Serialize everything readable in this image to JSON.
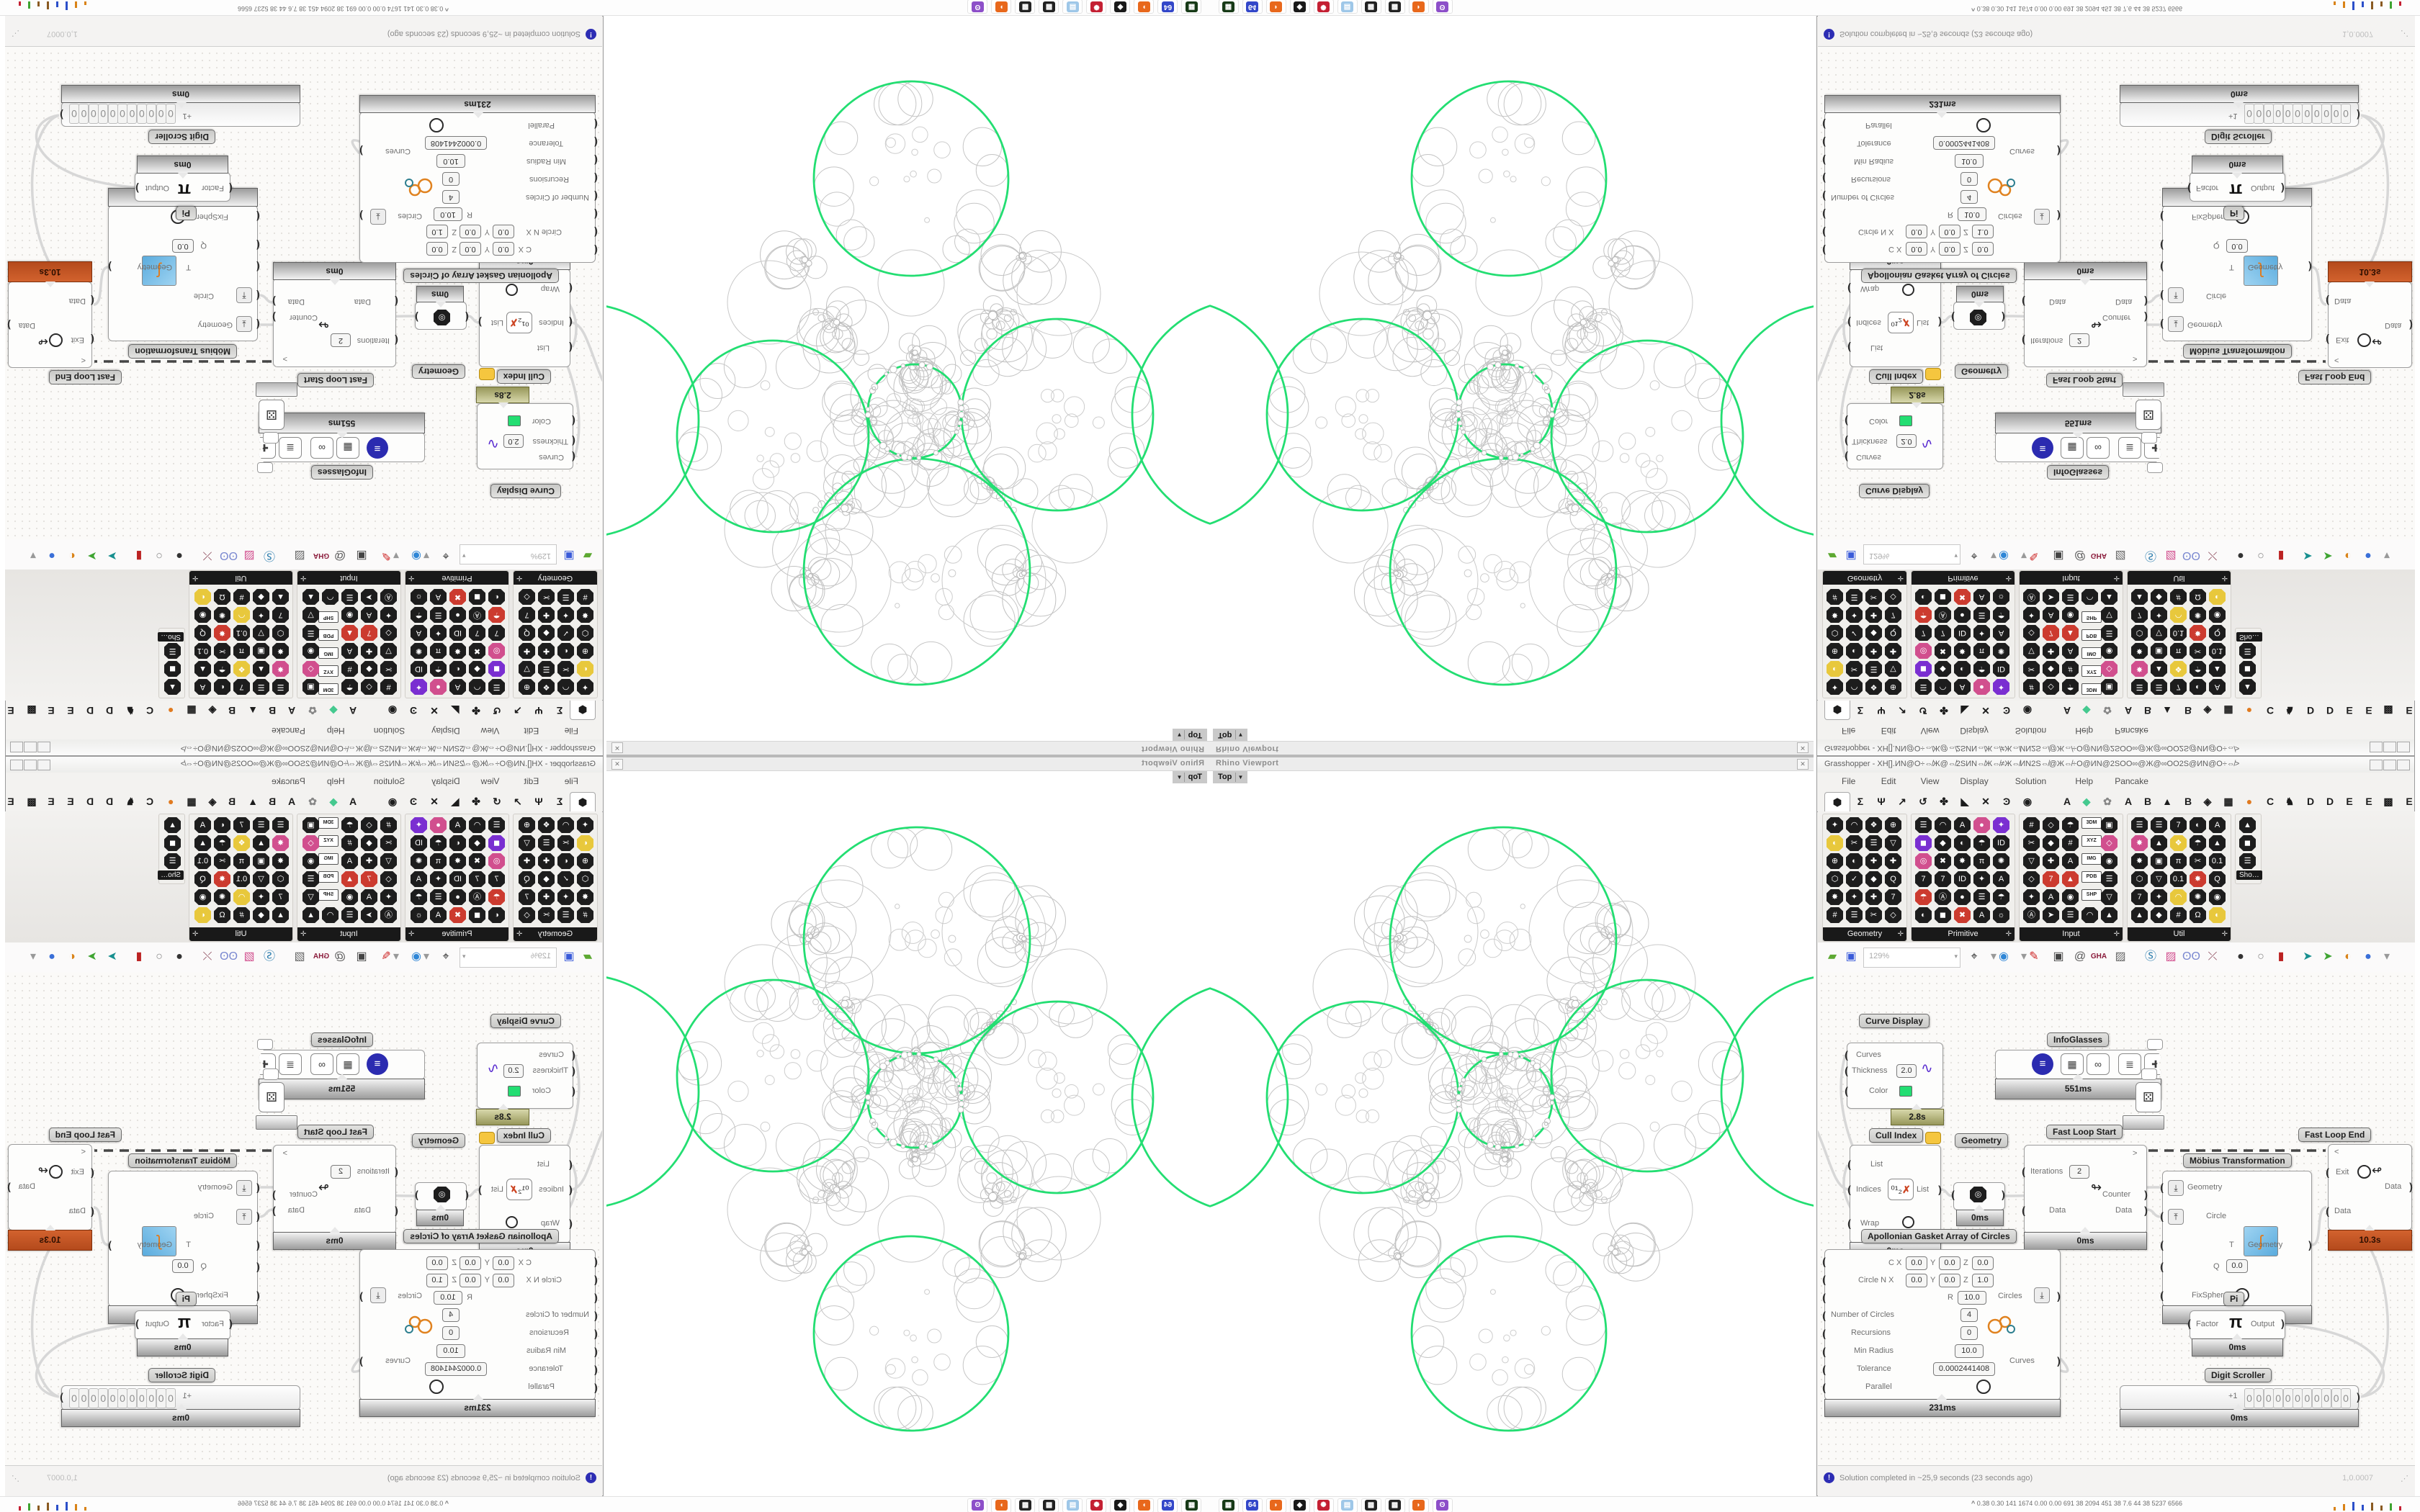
{
  "window_title": "Grasshopper - XH[].ИN@O÷⇎Ж@⇎2SИN⇎Ж⇎≠Ж⇎ИN2S⇎@Ж⇎÷O@ИN@2SОO∞@Ж@∞OО2S@ИN@O÷⇎>",
  "window_buttons": [
    "─",
    "□",
    "✕"
  ],
  "menu": [
    "File",
    "Edit",
    "View",
    "Display",
    "Solution",
    "Help",
    "Pancake"
  ],
  "viewport": {
    "panel_title": "Rhino Viewport",
    "view_tab": "Top",
    "tab_dropdown": "▼",
    "close": "✕"
  },
  "tabs": [
    "⬢",
    "Σ",
    "Ψ",
    "↗",
    "↺",
    "✤",
    "◣",
    "✕",
    "Ͽ",
    "◉",
    "A",
    "◆",
    "✿",
    "A",
    "B",
    "▲",
    "B",
    "◈",
    "▦",
    "●",
    "C",
    "♞",
    "D",
    "D",
    "E",
    "E",
    "▩",
    "E"
  ],
  "ribbon_panels": [
    {
      "name": "Geometry",
      "cols": 4,
      "rows": 6
    },
    {
      "name": "Primitive",
      "cols": 5,
      "rows": 6
    },
    {
      "name": "Input",
      "cols": 5,
      "rows": 6
    },
    {
      "name": "Util",
      "cols": 5,
      "rows": 6
    },
    {
      "name": "Sho…",
      "cols": 1,
      "rows": 3
    }
  ],
  "input_tags": [
    "3DM",
    "XYZ",
    "IMG",
    "PDB",
    "SHP"
  ],
  "toolbar": {
    "zoom_level": "129%",
    "gha_label": "GHA"
  },
  "statusbar": {
    "message": "Solution completed in ~25,9 seconds (23 seconds ago)",
    "coordinate": "1,0.0007"
  },
  "taskbar": {
    "stats": "0.38 0.30 141 1674 0.00 0.00 691 38 2094 451 38 7.6 44 38 5237 6566",
    "chevron": "^",
    "apps": [
      "terminal",
      "n64",
      "firefox",
      "inkscape",
      "raspbian",
      "notes",
      "maze",
      "maze2",
      "firefox2",
      "owl"
    ]
  },
  "components": {
    "curve_display": {
      "label": "Curve Display",
      "rows": [
        "Curves",
        "Thickness",
        "Color"
      ],
      "thickness_value": "2.0",
      "timer": "2.8s"
    },
    "infoglasses": {
      "label": "InfoGlasses",
      "timer": "551ms"
    },
    "cull_index": {
      "label": "Cull Index",
      "rows": [
        "List",
        "Indices",
        "Wrap"
      ],
      "out": "List",
      "timer": "0ms"
    },
    "geometry": {
      "label": "Geometry",
      "timer": "0ms"
    },
    "fast_loop_start": {
      "label": "Fast Loop Start",
      "corner": ">",
      "iterations_label": "Iterations",
      "iterations_value": "2",
      "data_label": "Data",
      "out_counter": "Counter",
      "out_data": "Data",
      "timer": "0ms"
    },
    "mobius": {
      "label": "Möbius Transformation",
      "rows": [
        "Geometry",
        "Circle",
        "T",
        "Q",
        "FixSphere"
      ],
      "q_value": "0.0",
      "out": "Geometry",
      "timer": "1ms"
    },
    "fast_loop_end": {
      "label": "Fast Loop End",
      "corner": "<",
      "exit_label": "Exit",
      "data_in": "Data",
      "data_out": "Data",
      "timer": "10.3s"
    },
    "pi": {
      "label": "Pi",
      "in": "Factor",
      "glyph": "π",
      "out": "Output",
      "timer": "0ms"
    },
    "digit_scroller": {
      "label": "Digit Scroller",
      "prefix": "+1",
      "digits": [
        "0",
        "0",
        "0",
        "0",
        "0",
        "0",
        "0",
        "0",
        "0",
        "0",
        "0"
      ],
      "timer": "0ms"
    },
    "apollonian": {
      "label": "Apollonian Gasket Array of Circles",
      "c_label": "C",
      "circle_label": "Circle",
      "n_label": "N",
      "r_label": "R",
      "axis_labels": [
        "X",
        "Y",
        "Z"
      ],
      "c_values": [
        "0.0",
        "0.0",
        "0.0"
      ],
      "n_values": [
        "0.0",
        "0.0",
        "1.0"
      ],
      "r_value": "10.0",
      "rows": [
        "Number of Circles",
        "Recursions",
        "Min Radius",
        "Tolerance",
        "Parallel"
      ],
      "values": {
        "number_of_circles": "4",
        "recursions": "0",
        "min_radius": "10.0",
        "tolerance": "0.0002441408"
      },
      "out_circles": "Circles",
      "out_curves": "Curves",
      "timer": "231ms"
    }
  },
  "colors": {
    "green": "#23de72",
    "orange_timer": "#c0541f",
    "navy": "#2b2bb0",
    "gray_wire": "#d7d7d7",
    "dash_wire": "#454545"
  },
  "gasket": {
    "green_circles": [
      [
        410,
        477,
        65
      ],
      [
        407,
        254,
        157
      ],
      [
        212,
        472,
        133
      ],
      [
        607,
        442,
        133
      ],
      [
        415,
        800,
        135
      ],
      [
        872,
        464,
        162
      ],
      [
        -52,
        472,
        160
      ]
    ]
  }
}
